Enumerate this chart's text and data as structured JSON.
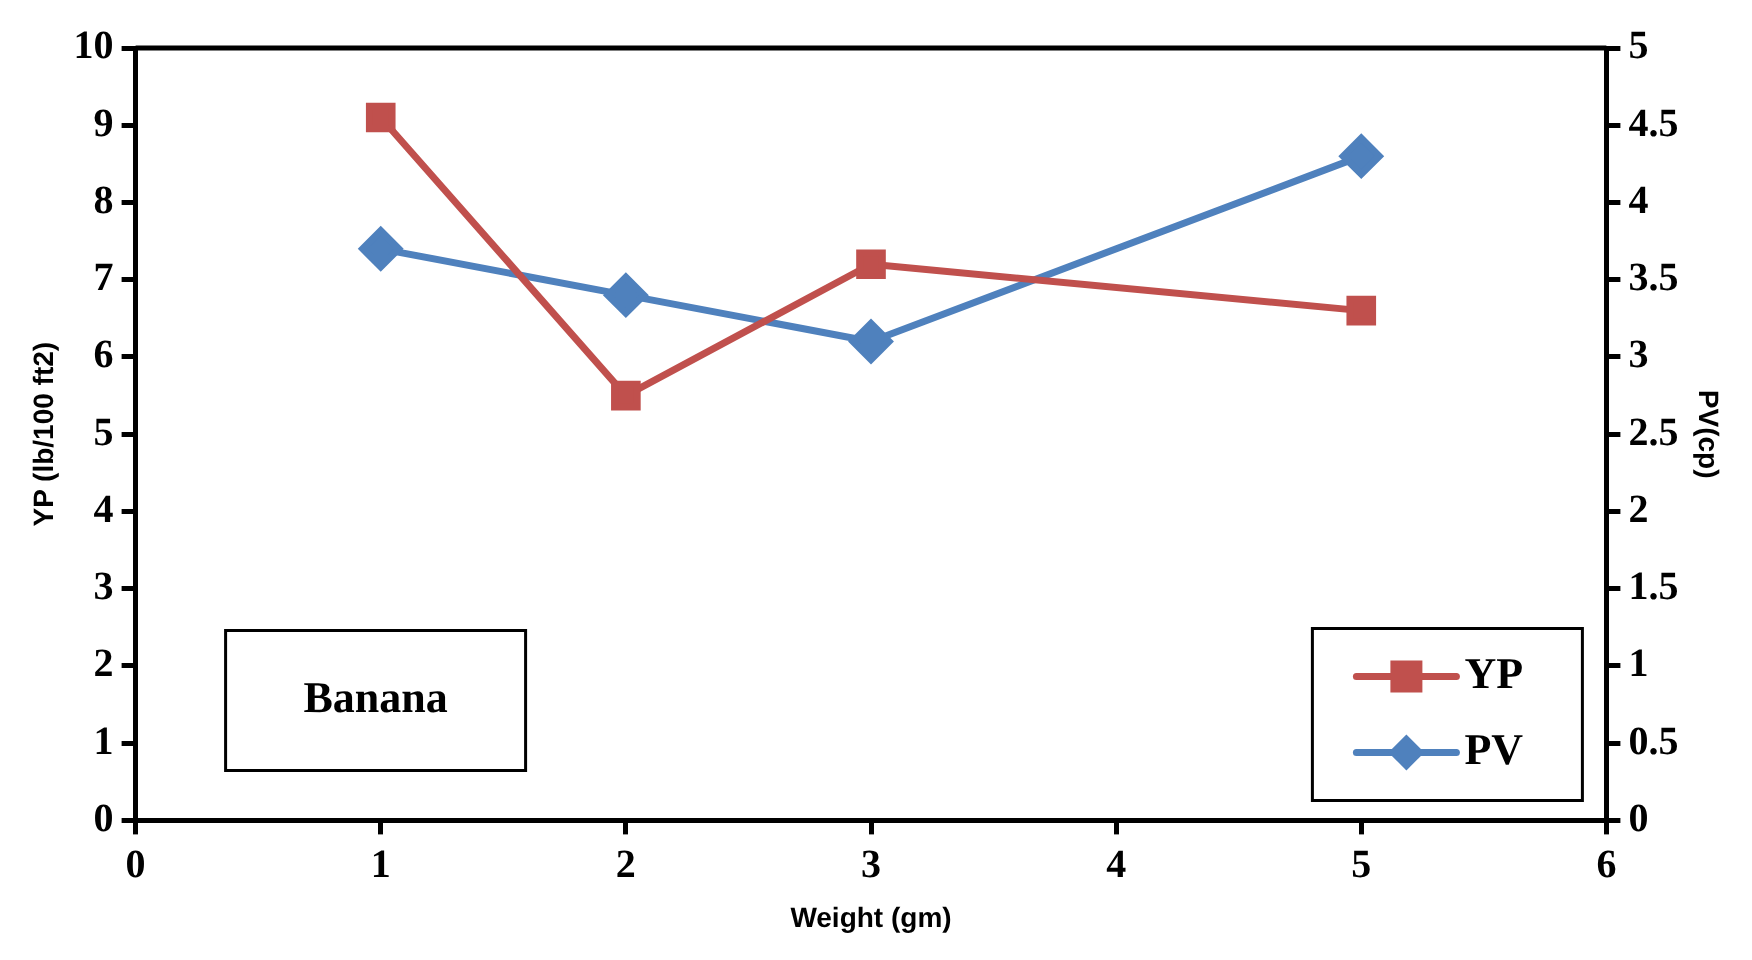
{
  "chart_data": {
    "type": "line",
    "xlabel": "Weight (gm)",
    "ylabel": "YP (lb/100 ft2)",
    "y2label": "PV(cp)",
    "x": [
      1,
      2,
      3,
      5
    ],
    "series": [
      {
        "name": "YP",
        "color": "#c0504d",
        "values": [
          9.1,
          5.5,
          7.2,
          6.6
        ],
        "marker": "square"
      },
      {
        "name": "PV",
        "color": "#4f81bd",
        "values": [
          3.7,
          3.4,
          3.1,
          4.3
        ],
        "marker": "diamond",
        "axis": "y2"
      }
    ],
    "xlim": [
      0,
      6
    ],
    "xticks": [
      0,
      1,
      2,
      3,
      4,
      5,
      6
    ],
    "ylim": [
      0,
      10
    ],
    "yticks": [
      0,
      1,
      2,
      3,
      4,
      5,
      6,
      7,
      8,
      9,
      10
    ],
    "y2lim": [
      0,
      5
    ],
    "y2ticks": [
      0,
      0.5,
      1,
      1.5,
      2,
      2.5,
      3,
      3.5,
      4,
      4.5,
      5
    ],
    "annotations": [
      "Banana"
    ],
    "legend": "bottom right",
    "grid": false
  }
}
